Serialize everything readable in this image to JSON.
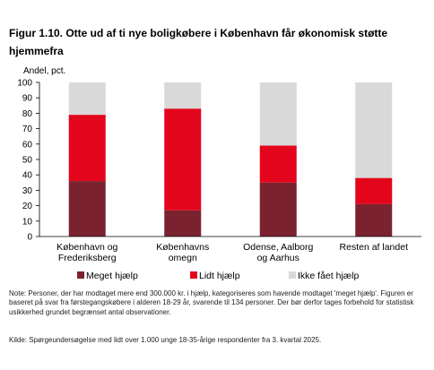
{
  "figure": {
    "title": "Figur 1.10. Otte ud af ti nye boligkøbere i København får økonomisk støtte hjemmefra",
    "note": "Note: Personer, der har modtaget mere end 300.000 kr. i hjælp, kategoriseres som havende modtaget 'meget hjælp'. Figuren er baseret på svar fra førstegangskøbere i alderen 18-29 år, svarende til 134 personer. Der bør derfor tages forbehold for statistisk usikkerhed grundet begrænset antal observationer.",
    "source": "Kilde: Spørgeundersøgelse med lidt over 1.000 unge 18-35-årige respondenter fra 3. kvartal 2025."
  },
  "chart_data": {
    "type": "bar",
    "stacked": true,
    "ylabel": "Andel, pct.",
    "ylim": [
      0,
      100
    ],
    "yticks": [
      0,
      10,
      20,
      30,
      40,
      50,
      60,
      70,
      80,
      90,
      100
    ],
    "grid": false,
    "legend_position": "bottom",
    "categories": [
      [
        "København og",
        "Frederiksberg"
      ],
      [
        "Københavns",
        "omegn"
      ],
      [
        "Odense, Aalborg",
        "og Aarhus"
      ],
      [
        "Resten af landet"
      ]
    ],
    "series": [
      {
        "name": "Meget hjælp",
        "color": "#7b2230",
        "values": [
          36,
          17,
          35,
          21
        ]
      },
      {
        "name": "Lidt hjælp",
        "color": "#e3051b",
        "values": [
          43,
          66,
          24,
          17
        ]
      },
      {
        "name": "Ikke fået hjælp",
        "color": "#d9d9d9",
        "values": [
          21,
          17,
          41,
          62
        ]
      }
    ]
  }
}
